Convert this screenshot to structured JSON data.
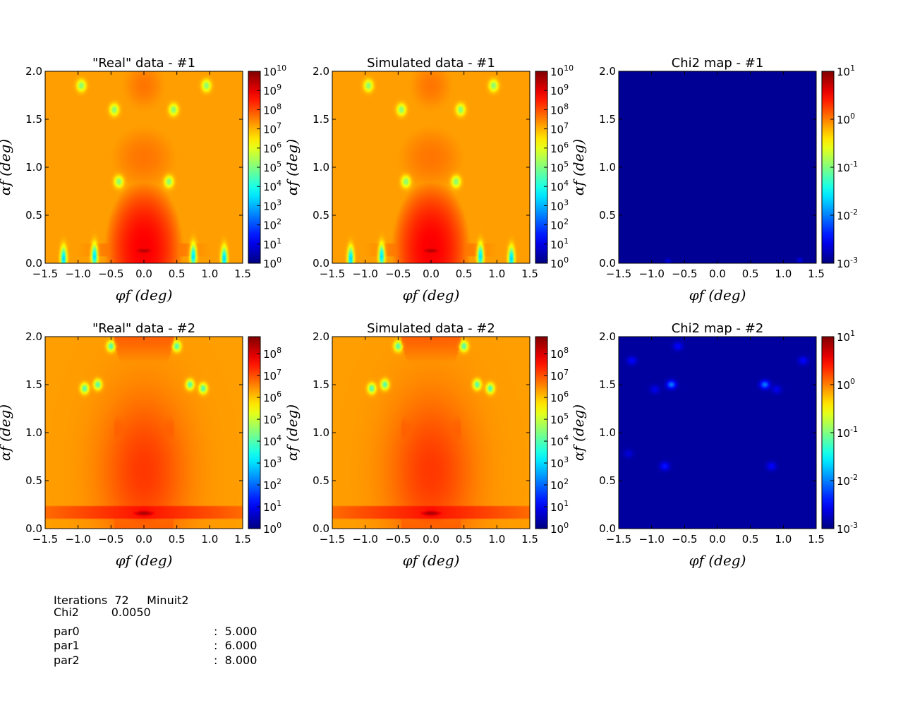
{
  "chart_data": [
    {
      "type": "heatmap",
      "title": "\"Real\" data - #1",
      "xlabel": "φf   (deg)",
      "ylabel": "αf   (deg)",
      "xlim": [
        -1.5,
        1.5
      ],
      "ylim": [
        0.0,
        2.0
      ],
      "xticks": [
        "−1.5",
        "−1.0",
        "−0.5",
        "0.0",
        "0.5",
        "1.0",
        "1.5"
      ],
      "yticks": [
        "0.0",
        "0.5",
        "1.0",
        "1.5",
        "2.0"
      ],
      "colorbar": {
        "scale": "log",
        "range": [
          1,
          10000000000.0
        ],
        "ticks": [
          {
            "base": "10",
            "exp": "0"
          },
          {
            "base": "10",
            "exp": "1"
          },
          {
            "base": "10",
            "exp": "2"
          },
          {
            "base": "10",
            "exp": "3"
          },
          {
            "base": "10",
            "exp": "4"
          },
          {
            "base": "10",
            "exp": "5"
          },
          {
            "base": "10",
            "exp": "6"
          },
          {
            "base": "10",
            "exp": "7"
          },
          {
            "base": "10",
            "exp": "8"
          },
          {
            "base": "10",
            "exp": "9"
          },
          {
            "base": "10",
            "exp": "10"
          }
        ]
      },
      "colormap": "jet",
      "pattern": "sample1"
    },
    {
      "type": "heatmap",
      "title": "Simulated data - #1",
      "xlabel": "φf   (deg)",
      "ylabel": "αf   (deg)",
      "xlim": [
        -1.5,
        1.5
      ],
      "ylim": [
        0.0,
        2.0
      ],
      "xticks": [
        "−1.5",
        "−1.0",
        "−0.5",
        "0.0",
        "0.5",
        "1.0",
        "1.5"
      ],
      "yticks": [
        "0.0",
        "0.5",
        "1.0",
        "1.5",
        "2.0"
      ],
      "colorbar": {
        "scale": "log",
        "range": [
          1,
          10000000000.0
        ],
        "ticks": [
          {
            "base": "10",
            "exp": "0"
          },
          {
            "base": "10",
            "exp": "1"
          },
          {
            "base": "10",
            "exp": "2"
          },
          {
            "base": "10",
            "exp": "3"
          },
          {
            "base": "10",
            "exp": "4"
          },
          {
            "base": "10",
            "exp": "5"
          },
          {
            "base": "10",
            "exp": "6"
          },
          {
            "base": "10",
            "exp": "7"
          },
          {
            "base": "10",
            "exp": "8"
          },
          {
            "base": "10",
            "exp": "9"
          },
          {
            "base": "10",
            "exp": "10"
          }
        ]
      },
      "colormap": "jet",
      "pattern": "sample1"
    },
    {
      "type": "heatmap",
      "title": "Chi2 map - #1",
      "xlabel": "φf   (deg)",
      "ylabel": "αf   (deg)",
      "xlim": [
        -1.5,
        1.5
      ],
      "ylim": [
        0.0,
        2.0
      ],
      "xticks": [
        "−1.5",
        "−1.0",
        "−0.5",
        "0.0",
        "0.5",
        "1.0",
        "1.5"
      ],
      "yticks": [
        "0.0",
        "0.5",
        "1.0",
        "1.5",
        "2.0"
      ],
      "colorbar": {
        "scale": "log",
        "range": [
          0.001,
          10
        ],
        "ticks": [
          {
            "base": "10",
            "exp": "-3"
          },
          {
            "base": "10",
            "exp": "-2"
          },
          {
            "base": "10",
            "exp": "-1"
          },
          {
            "base": "10",
            "exp": "0"
          },
          {
            "base": "10",
            "exp": "1"
          }
        ]
      },
      "colormap": "jet",
      "pattern": "chi1"
    },
    {
      "type": "heatmap",
      "title": "\"Real\" data - #2",
      "xlabel": "φf   (deg)",
      "ylabel": "αf   (deg)",
      "xlim": [
        -1.5,
        1.5
      ],
      "ylim": [
        0.0,
        2.0
      ],
      "xticks": [
        "−1.5",
        "−1.0",
        "−0.5",
        "0.0",
        "0.5",
        "1.0",
        "1.5"
      ],
      "yticks": [
        "0.0",
        "0.5",
        "1.0",
        "1.5",
        "2.0"
      ],
      "colorbar": {
        "scale": "log",
        "range": [
          1,
          600000000.0
        ],
        "ticks": [
          {
            "base": "10",
            "exp": "0"
          },
          {
            "base": "10",
            "exp": "1"
          },
          {
            "base": "10",
            "exp": "2"
          },
          {
            "base": "10",
            "exp": "3"
          },
          {
            "base": "10",
            "exp": "4"
          },
          {
            "base": "10",
            "exp": "5"
          },
          {
            "base": "10",
            "exp": "6"
          },
          {
            "base": "10",
            "exp": "7"
          },
          {
            "base": "10",
            "exp": "8"
          }
        ]
      },
      "colormap": "jet",
      "pattern": "sample2"
    },
    {
      "type": "heatmap",
      "title": "Simulated data - #2",
      "xlabel": "φf   (deg)",
      "ylabel": "αf   (deg)",
      "xlim": [
        -1.5,
        1.5
      ],
      "ylim": [
        0.0,
        2.0
      ],
      "xticks": [
        "−1.5",
        "−1.0",
        "−0.5",
        "0.0",
        "0.5",
        "1.0",
        "1.5"
      ],
      "yticks": [
        "0.0",
        "0.5",
        "1.0",
        "1.5",
        "2.0"
      ],
      "colorbar": {
        "scale": "log",
        "range": [
          1,
          600000000.0
        ],
        "ticks": [
          {
            "base": "10",
            "exp": "0"
          },
          {
            "base": "10",
            "exp": "1"
          },
          {
            "base": "10",
            "exp": "2"
          },
          {
            "base": "10",
            "exp": "3"
          },
          {
            "base": "10",
            "exp": "4"
          },
          {
            "base": "10",
            "exp": "5"
          },
          {
            "base": "10",
            "exp": "6"
          },
          {
            "base": "10",
            "exp": "7"
          },
          {
            "base": "10",
            "exp": "8"
          }
        ]
      },
      "colormap": "jet",
      "pattern": "sample2"
    },
    {
      "type": "heatmap",
      "title": "Chi2 map - #2",
      "xlabel": "φf   (deg)",
      "ylabel": "αf   (deg)",
      "xlim": [
        -1.5,
        1.5
      ],
      "ylim": [
        0.0,
        2.0
      ],
      "xticks": [
        "−1.5",
        "−1.0",
        "−0.5",
        "0.0",
        "0.5",
        "1.0",
        "1.5"
      ],
      "yticks": [
        "0.0",
        "0.5",
        "1.0",
        "1.5",
        "2.0"
      ],
      "colorbar": {
        "scale": "log",
        "range": [
          0.001,
          10
        ],
        "ticks": [
          {
            "base": "10",
            "exp": "-3"
          },
          {
            "base": "10",
            "exp": "-2"
          },
          {
            "base": "10",
            "exp": "-1"
          },
          {
            "base": "10",
            "exp": "0"
          },
          {
            "base": "10",
            "exp": "1"
          }
        ]
      },
      "colormap": "jet",
      "pattern": "chi2"
    }
  ],
  "fit_info": {
    "iterations_label": "Iterations",
    "iterations_value": "72",
    "minimizer": "Minuit2",
    "chi2_label": "Chi2",
    "chi2_value": "0.0050",
    "params": [
      {
        "name": "par0",
        "value": "5.000"
      },
      {
        "name": "par1",
        "value": "6.000"
      },
      {
        "name": "par2",
        "value": "8.000"
      }
    ]
  }
}
